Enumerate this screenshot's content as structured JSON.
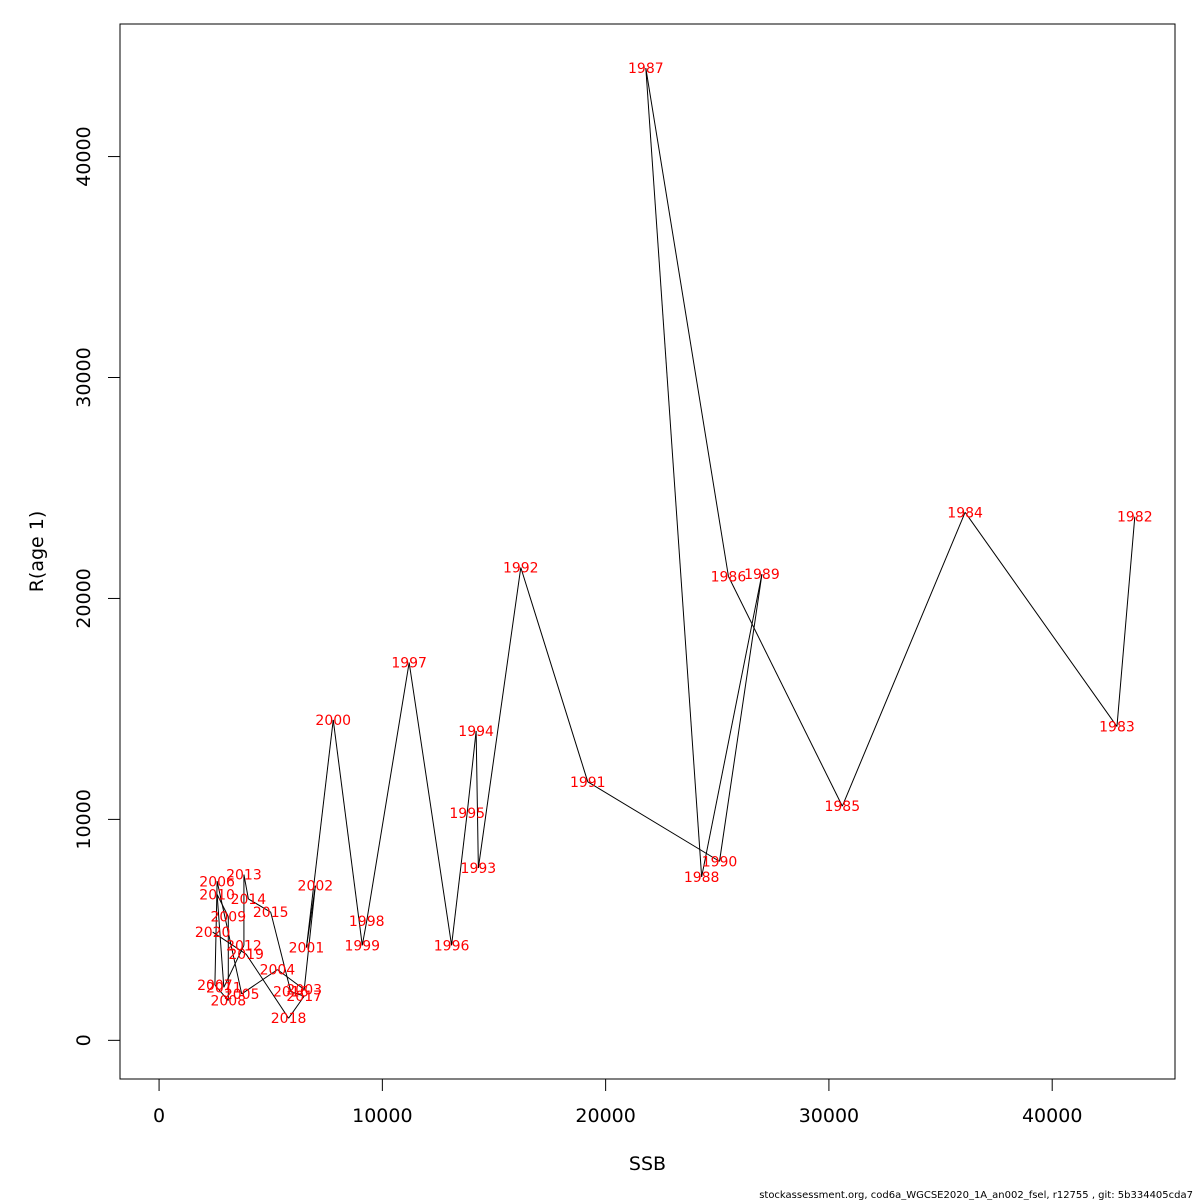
{
  "chart_data": {
    "type": "scatter",
    "xlabel": "SSB",
    "ylabel": "R(age 1)",
    "xlim": [
      -1750,
      45500
    ],
    "ylim": [
      -1750,
      46000
    ],
    "x_ticks": [
      0,
      10000,
      20000,
      30000,
      40000
    ],
    "y_ticks": [
      0,
      10000,
      20000,
      30000,
      40000
    ],
    "label_color": "#ff0000",
    "line_color": "#000000",
    "grid": false,
    "series": [
      {
        "points": [
          {
            "label": "1982",
            "x": 43700,
            "y": 23700
          },
          {
            "label": "1983",
            "x": 42900,
            "y": 14200
          },
          {
            "label": "1984",
            "x": 36100,
            "y": 23900
          },
          {
            "label": "1985",
            "x": 30600,
            "y": 10600
          },
          {
            "label": "1986",
            "x": 25500,
            "y": 21000
          },
          {
            "label": "1987",
            "x": 21800,
            "y": 44000
          },
          {
            "label": "1988",
            "x": 24300,
            "y": 7400
          },
          {
            "label": "1989",
            "x": 27000,
            "y": 21100
          },
          {
            "label": "1990",
            "x": 25100,
            "y": 8100
          },
          {
            "label": "1991",
            "x": 19200,
            "y": 11700
          },
          {
            "label": "1992",
            "x": 16200,
            "y": 21400
          },
          {
            "label": "1993",
            "x": 14300,
            "y": 7800
          },
          {
            "label": "1994",
            "x": 14200,
            "y": 14000
          },
          {
            "label": "1995",
            "x": 13800,
            "y": 10300
          },
          {
            "label": "1996",
            "x": 13100,
            "y": 4300
          },
          {
            "label": "1997",
            "x": 11200,
            "y": 17100
          },
          {
            "label": "1998",
            "x": 9300,
            "y": 5400
          },
          {
            "label": "1999",
            "x": 9100,
            "y": 4300
          },
          {
            "label": "2000",
            "x": 7800,
            "y": 14500
          },
          {
            "label": "2001",
            "x": 6600,
            "y": 4200
          },
          {
            "label": "2002",
            "x": 7000,
            "y": 7000
          },
          {
            "label": "2003",
            "x": 6500,
            "y": 2300
          },
          {
            "label": "2004",
            "x": 5300,
            "y": 3200
          },
          {
            "label": "2005",
            "x": 3700,
            "y": 2100
          },
          {
            "label": "2006",
            "x": 2600,
            "y": 7200
          },
          {
            "label": "2007",
            "x": 2500,
            "y": 2500
          },
          {
            "label": "2008",
            "x": 3100,
            "y": 1800
          },
          {
            "label": "2009",
            "x": 3100,
            "y": 5600
          },
          {
            "label": "2010",
            "x": 2600,
            "y": 6600
          },
          {
            "label": "2011",
            "x": 2900,
            "y": 2400
          },
          {
            "label": "2012",
            "x": 3800,
            "y": 4300
          },
          {
            "label": "2013",
            "x": 3800,
            "y": 7500
          },
          {
            "label": "2014",
            "x": 4000,
            "y": 6400
          },
          {
            "label": "2015",
            "x": 5000,
            "y": 5800
          },
          {
            "label": "2016",
            "x": 5900,
            "y": 2200
          },
          {
            "label": "2017",
            "x": 6500,
            "y": 2000
          },
          {
            "label": "2018",
            "x": 5800,
            "y": 1000
          },
          {
            "label": "2019",
            "x": 3900,
            "y": 3900
          },
          {
            "label": "2020",
            "x": 2400,
            "y": 4900
          }
        ]
      }
    ]
  },
  "footer": "stockassessment.org, cod6a_WGCSE2020_1A_an002_fsel, r12755 , git: 5b334405cda7"
}
